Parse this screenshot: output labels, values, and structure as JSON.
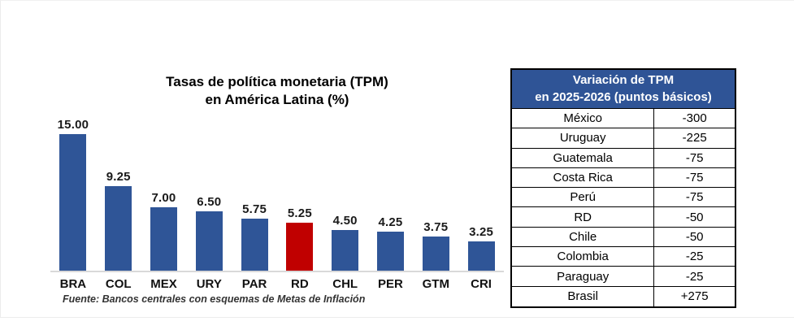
{
  "chart_data": [
    {
      "type": "bar",
      "title_line1": "Tasas de política monetaria (TPM)",
      "title_line2": "en América Latina (%)",
      "categories": [
        "BRA",
        "COL",
        "MEX",
        "URY",
        "PAR",
        "RD",
        "CHL",
        "PER",
        "GTM",
        "CRI"
      ],
      "values": [
        15.0,
        9.25,
        7.0,
        6.5,
        5.75,
        5.25,
        4.5,
        4.25,
        3.75,
        3.25
      ],
      "value_labels": [
        "15.00",
        "9.25",
        "7.00",
        "6.50",
        "5.75",
        "5.25",
        "4.50",
        "4.25",
        "3.75",
        "3.25"
      ],
      "highlight_index": 5,
      "bar_color": "#2F5597",
      "highlight_color": "#C00000",
      "xlabel": "",
      "ylabel": "",
      "ylim": [
        0,
        15
      ],
      "grid": false,
      "legend": "none",
      "source": "Fuente: Bancos centrales con esquemas de Metas de Inflación"
    },
    {
      "type": "table",
      "title_line1": "Variación de TPM",
      "title_line2": "en 2025-2026 (puntos básicos)",
      "header_bg": "#2F5496",
      "rows": [
        [
          "México",
          "-300"
        ],
        [
          "Uruguay",
          "-225"
        ],
        [
          "Guatemala",
          "-75"
        ],
        [
          "Costa Rica",
          "-75"
        ],
        [
          "Perú",
          "-75"
        ],
        [
          "RD",
          "-50"
        ],
        [
          "Chile",
          "-50"
        ],
        [
          "Colombia",
          "-25"
        ],
        [
          "Paraguay",
          "-25"
        ],
        [
          "Brasil",
          "+275"
        ]
      ]
    }
  ]
}
